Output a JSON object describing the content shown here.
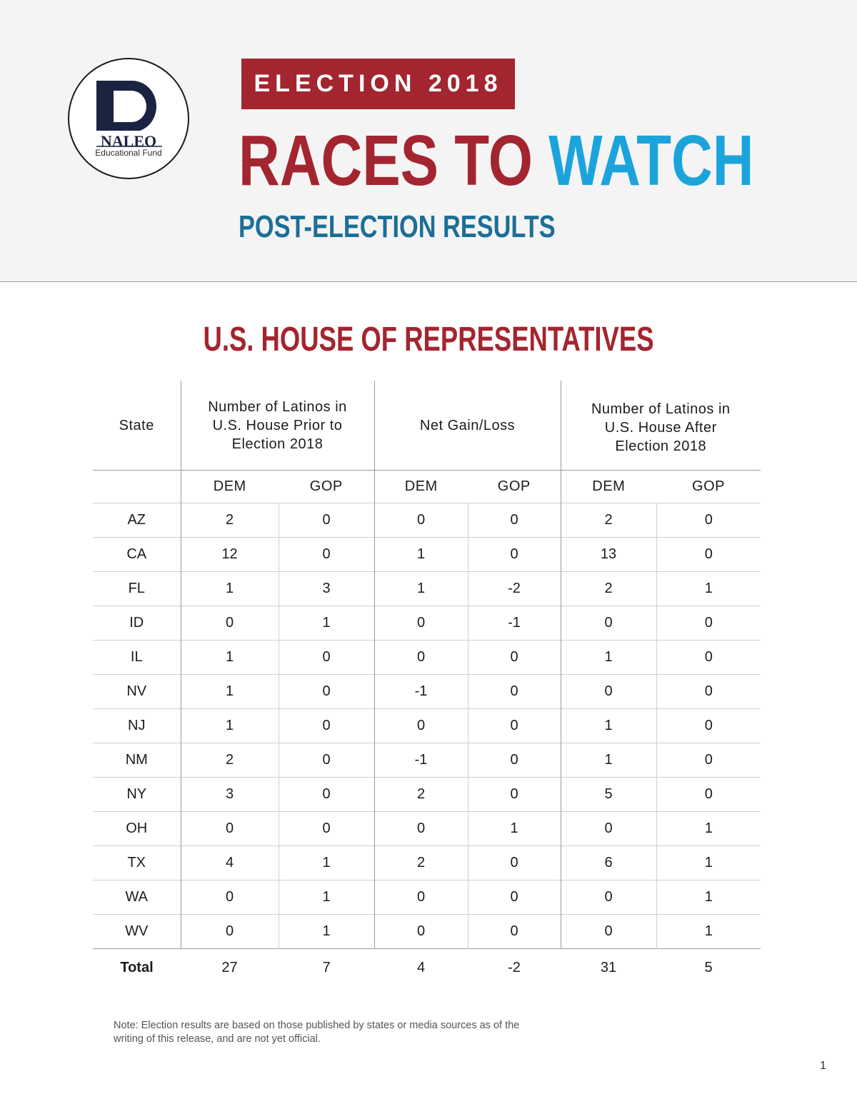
{
  "logo": {
    "name": "NALEO",
    "sub": "Educational Fund"
  },
  "header": {
    "badge": "ELECTION 2018",
    "title_part1": "RACES TO",
    "title_part2": "WATCH",
    "subtitle": "POST-ELECTION RESULTS"
  },
  "section_title": "U.S. HOUSE OF REPRESENTATIVES",
  "table": {
    "col_state": "State",
    "col_prior": "Number of Latinos in U.S. House Prior to Election 2018",
    "col_net": "Net Gain/Loss",
    "col_after": "Number of Latinos in U.S. House After Election 2018",
    "dem": "DEM",
    "gop": "GOP",
    "rows": [
      [
        "AZ",
        "2",
        "0",
        "0",
        "0",
        "2",
        "0"
      ],
      [
        "CA",
        "12",
        "0",
        "1",
        "0",
        "13",
        "0"
      ],
      [
        "FL",
        "1",
        "3",
        "1",
        "-2",
        "2",
        "1"
      ],
      [
        "ID",
        "0",
        "1",
        "0",
        "-1",
        "0",
        "0"
      ],
      [
        "IL",
        "1",
        "0",
        "0",
        "0",
        "1",
        "0"
      ],
      [
        "NV",
        "1",
        "0",
        "-1",
        "0",
        "0",
        "0"
      ],
      [
        "NJ",
        "1",
        "0",
        "0",
        "0",
        "1",
        "0"
      ],
      [
        "NM",
        "2",
        "0",
        "-1",
        "0",
        "1",
        "0"
      ],
      [
        "NY",
        "3",
        "0",
        "2",
        "0",
        "5",
        "0"
      ],
      [
        "OH",
        "0",
        "0",
        "0",
        "1",
        "0",
        "1"
      ],
      [
        "TX",
        "4",
        "1",
        "2",
        "0",
        "6",
        "1"
      ],
      [
        "WA",
        "0",
        "1",
        "0",
        "0",
        "0",
        "1"
      ],
      [
        "WV",
        "0",
        "1",
        "0",
        "0",
        "0",
        "1"
      ]
    ],
    "total": [
      "Total",
      "27",
      "7",
      "4",
      "-2",
      "31",
      "5"
    ]
  },
  "note": "Note: Election results are based on those published by states or media sources as of the writing of this release, and are not yet official.",
  "page_number": "1",
  "colors": {
    "red": "#a3252f",
    "blue": "#1ba4dc",
    "dark_blue": "#1c6e96"
  }
}
